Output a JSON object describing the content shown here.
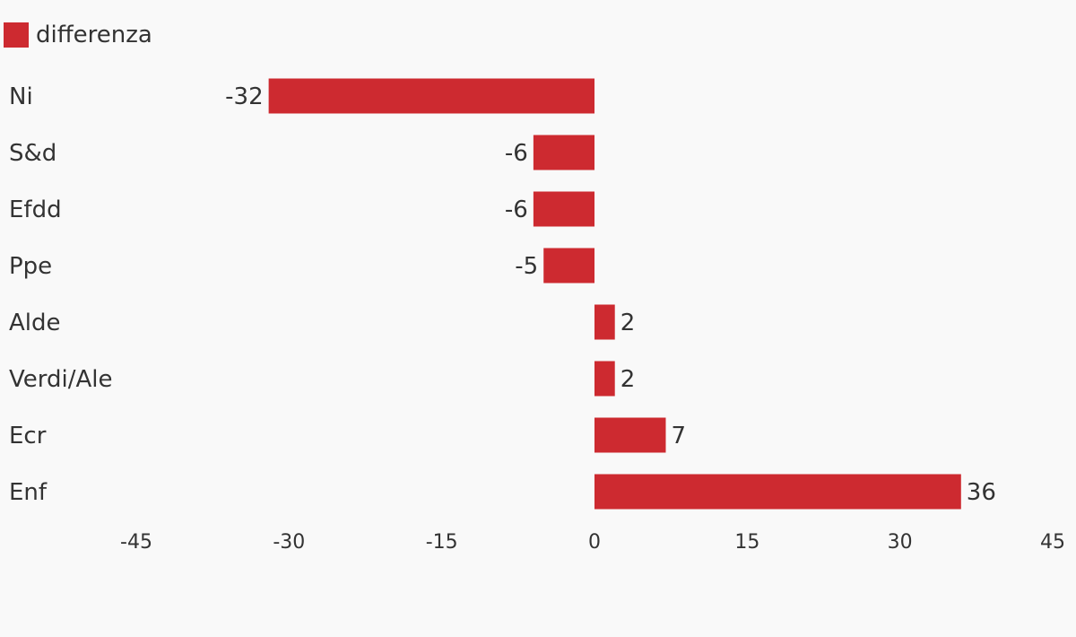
{
  "chart_data": {
    "type": "bar",
    "orientation": "horizontal",
    "categories": [
      "Ni",
      "S&d",
      "Efdd",
      "Ppe",
      "Alde",
      "Verdi/Ale",
      "Ecr",
      "Enf"
    ],
    "series": [
      {
        "name": "differenza",
        "color": "#cd2a30",
        "values": [
          -32,
          -6,
          -6,
          -5,
          2,
          2,
          7,
          36
        ]
      }
    ],
    "xlim": [
      -45,
      45
    ],
    "xticks": [
      -45,
      -30,
      -15,
      0,
      15,
      30,
      45
    ],
    "data_labels": true,
    "legend_position": "top-left",
    "grid": false
  }
}
